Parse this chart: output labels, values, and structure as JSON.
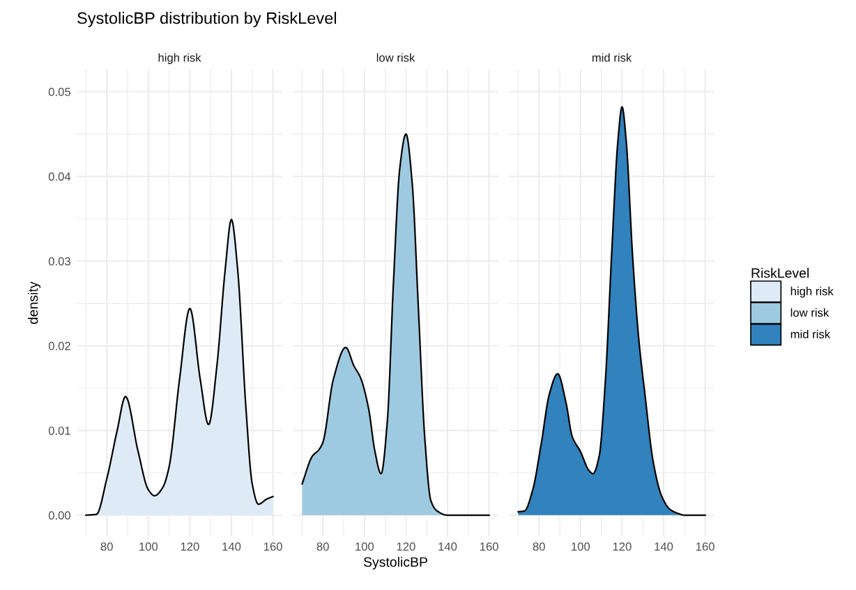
{
  "chart_data": [
    {
      "type": "area",
      "title": "SystolicBP distribution by RiskLevel",
      "subtitle": "high risk",
      "ylabel": "density",
      "series": [
        {
          "name": "high risk",
          "color": "#deebf7",
          "x": [
            70,
            75,
            80,
            85,
            89,
            95,
            100,
            103,
            107,
            110,
            115,
            120,
            125,
            129,
            133,
            137,
            140,
            143,
            147,
            150,
            153,
            157,
            160
          ],
          "values": [
            0.0,
            0.0001,
            0.0043,
            0.01,
            0.014,
            0.0076,
            0.003,
            0.0023,
            0.0033,
            0.0057,
            0.016,
            0.0244,
            0.016,
            0.0107,
            0.0176,
            0.029,
            0.0349,
            0.029,
            0.0126,
            0.0037,
            0.0013,
            0.0019,
            0.0022
          ]
        }
      ],
      "xlim": [
        65.5,
        164.5
      ],
      "xticks": [
        80,
        100,
        120,
        140,
        160
      ],
      "ylim": [
        -0.0025,
        0.0526
      ],
      "yticks": [
        {
          "value": 0,
          "label": "0.00"
        },
        0.01,
        0.02,
        0.03,
        0.04,
        0.05
      ],
      "grid": true
    },
    {
      "type": "area",
      "subtitle": "low risk",
      "xlabel": "SystolicBP",
      "series": [
        {
          "name": "low risk",
          "color": "#9ecae1",
          "x": [
            70,
            75,
            78,
            80,
            85,
            91,
            95,
            98,
            102,
            105,
            108,
            111,
            114,
            117,
            120,
            123,
            126,
            129,
            132,
            135,
            140,
            150,
            160
          ],
          "values": [
            0.0037,
            0.007,
            0.0077,
            0.0086,
            0.016,
            0.0198,
            0.0176,
            0.0163,
            0.0126,
            0.0076,
            0.0049,
            0.011,
            0.0276,
            0.0409,
            0.045,
            0.0392,
            0.0243,
            0.0093,
            0.0017,
            0.0005,
            0.0,
            0.0,
            0.0
          ]
        }
      ],
      "xlim": [
        65.5,
        164.5
      ],
      "xticks": [
        80,
        100,
        120,
        140,
        160
      ],
      "ylim": [
        -0.0025,
        0.0526
      ],
      "grid": true,
      "tick_labels": "x"
    },
    {
      "type": "area",
      "subtitle": "mid risk",
      "legend": "right",
      "legend_title": "RiskLevel",
      "series": [
        {
          "name": "mid risk",
          "color": "#3182bd",
          "x": [
            70,
            73,
            77,
            81,
            85,
            89,
            93,
            96,
            100,
            104,
            106,
            109,
            112,
            115,
            118,
            120,
            122,
            125,
            128,
            131,
            135,
            139,
            143,
            147,
            150,
            160
          ],
          "values": [
            0.0004,
            0.0005,
            0.003,
            0.0083,
            0.0143,
            0.0167,
            0.0133,
            0.0093,
            0.0075,
            0.0053,
            0.0049,
            0.007,
            0.016,
            0.0309,
            0.0442,
            0.0482,
            0.0442,
            0.0309,
            0.0209,
            0.0143,
            0.0063,
            0.0023,
            0.0007,
            0.0002,
            0.0,
            0.0
          ]
        }
      ],
      "xlim": [
        65.5,
        164.5
      ],
      "xticks": [
        80,
        100,
        120,
        140,
        160
      ],
      "ylim": [
        -0.0025,
        0.0526
      ],
      "grid": true,
      "tick_labels": "x"
    }
  ]
}
